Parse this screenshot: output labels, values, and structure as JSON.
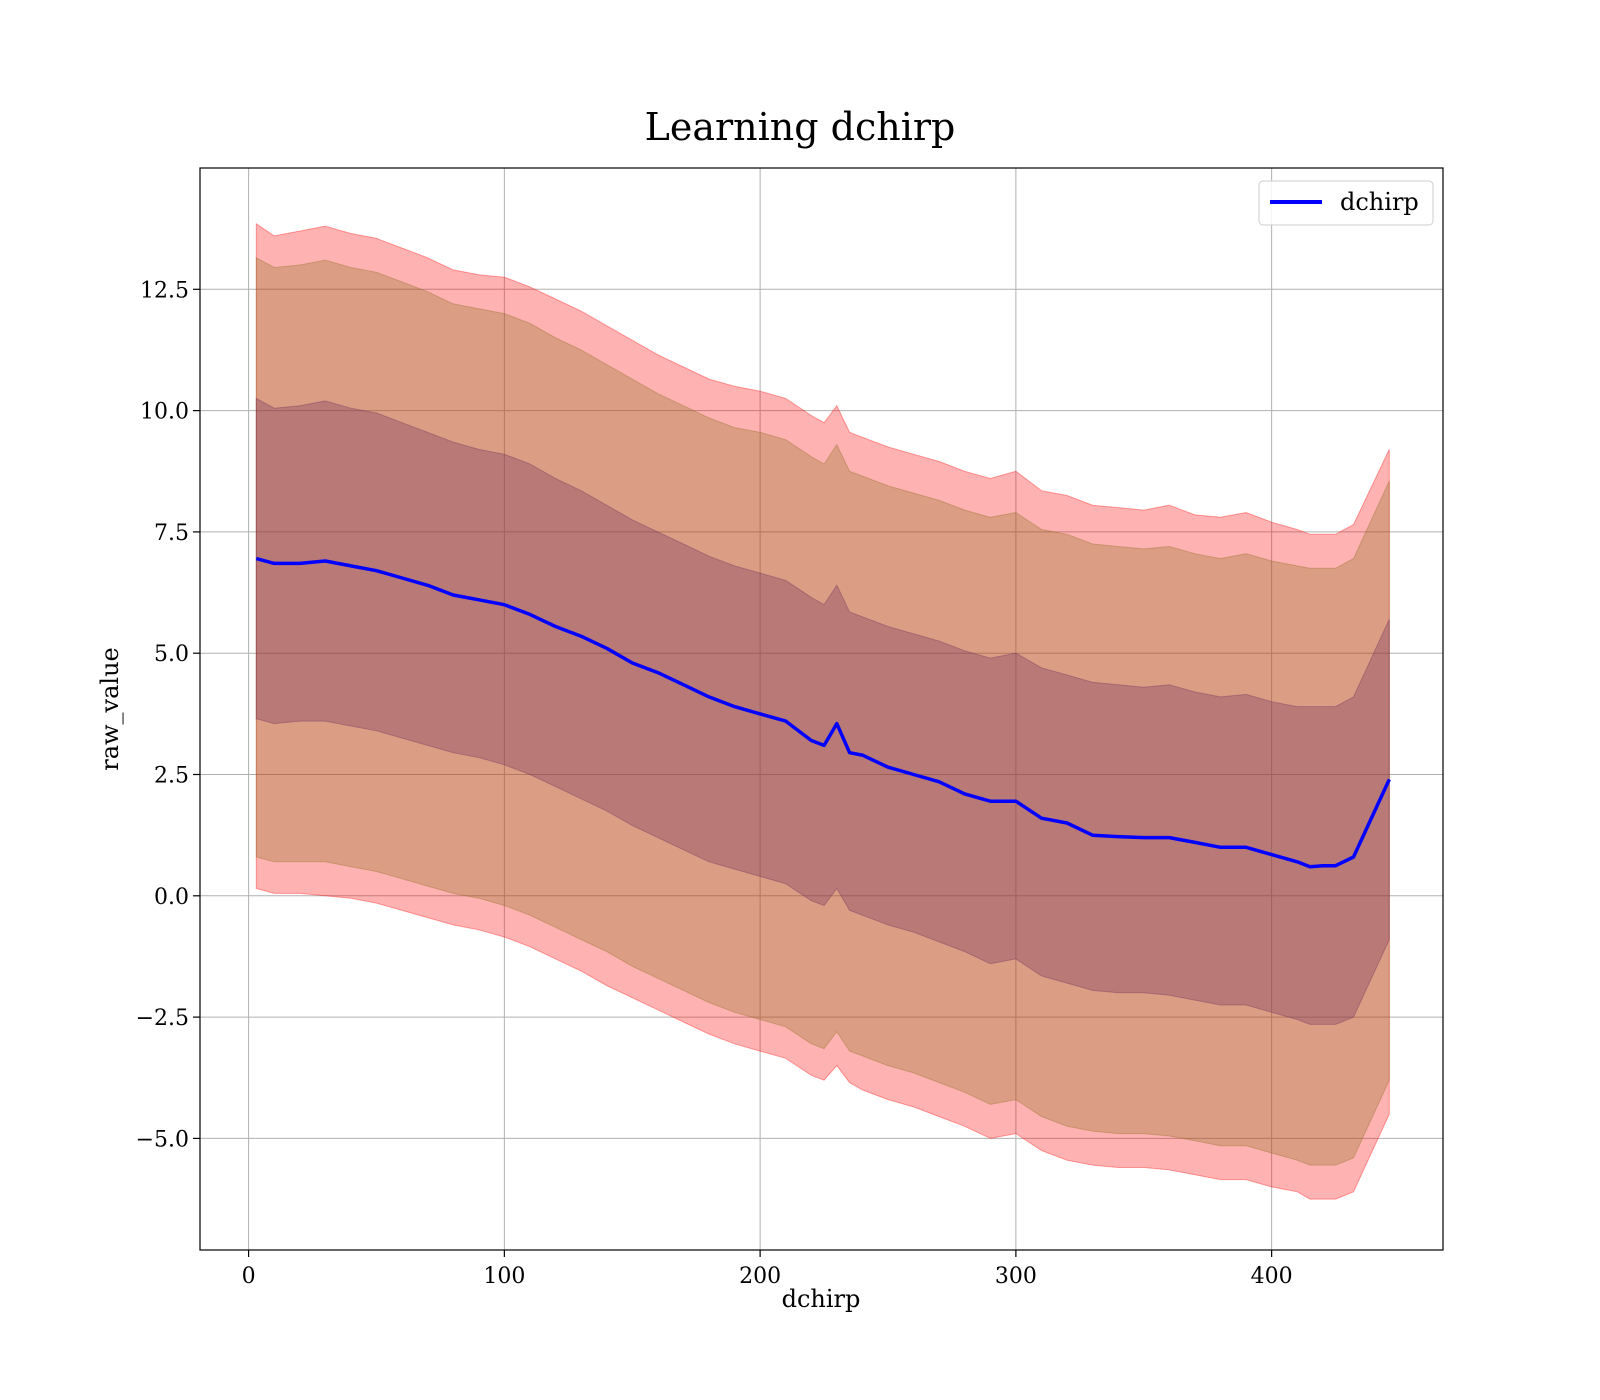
{
  "chart_data": {
    "type": "area",
    "title": "Learning dchirp",
    "xlabel": "dchirp",
    "ylabel": "raw_value",
    "xlim": [
      -19,
      467
    ],
    "ylim": [
      -7.3,
      15.0
    ],
    "x_ticks": [
      0,
      100,
      200,
      300,
      400
    ],
    "y_ticks": [
      -5.0,
      -2.5,
      0.0,
      2.5,
      5.0,
      7.5,
      10.0,
      12.5
    ],
    "x_tick_labels": [
      "0",
      "100",
      "200",
      "300",
      "400"
    ],
    "y_tick_labels": [
      "−5.0",
      "−2.5",
      "0.0",
      "2.5",
      "5.0",
      "7.5",
      "10.0",
      "12.5"
    ],
    "grid": true,
    "legend": {
      "position": "top-right",
      "entries": [
        "dchirp"
      ]
    },
    "colors": {
      "line": "#0000ff",
      "band_outer": "#ff0000",
      "band_middle": "#8c6d1f",
      "band_inner": "#6b2a58"
    },
    "series": [
      {
        "name": "dchirp",
        "x": [
          3,
          10,
          20,
          30,
          40,
          50,
          60,
          70,
          80,
          90,
          100,
          110,
          120,
          130,
          140,
          150,
          160,
          170,
          180,
          190,
          200,
          210,
          220,
          225,
          230,
          235,
          240,
          250,
          260,
          270,
          280,
          290,
          300,
          310,
          320,
          330,
          340,
          350,
          360,
          370,
          380,
          390,
          400,
          410,
          415,
          420,
          425,
          432,
          446
        ],
        "y": [
          6.95,
          6.85,
          6.85,
          6.9,
          6.8,
          6.7,
          6.55,
          6.4,
          6.2,
          6.1,
          6.0,
          5.8,
          5.55,
          5.35,
          5.1,
          4.8,
          4.6,
          4.35,
          4.1,
          3.9,
          3.75,
          3.6,
          3.2,
          3.1,
          3.55,
          2.95,
          2.9,
          2.65,
          2.5,
          2.35,
          2.1,
          1.95,
          1.95,
          1.6,
          1.5,
          1.25,
          1.22,
          1.2,
          1.2,
          1.1,
          1.0,
          1.0,
          0.85,
          0.7,
          0.6,
          0.62,
          0.62,
          0.8,
          2.4
        ]
      }
    ],
    "bands": [
      {
        "level": "outer",
        "x": [
          3,
          10,
          20,
          30,
          40,
          50,
          60,
          70,
          80,
          90,
          100,
          110,
          120,
          130,
          140,
          150,
          160,
          170,
          180,
          190,
          200,
          210,
          220,
          225,
          230,
          235,
          240,
          250,
          260,
          270,
          280,
          290,
          300,
          310,
          320,
          330,
          340,
          350,
          360,
          370,
          380,
          390,
          400,
          410,
          415,
          420,
          425,
          432,
          446
        ],
        "upper": [
          13.85,
          13.6,
          13.7,
          13.8,
          13.65,
          13.55,
          13.35,
          13.15,
          12.9,
          12.8,
          12.75,
          12.55,
          12.3,
          12.05,
          11.75,
          11.45,
          11.15,
          10.9,
          10.65,
          10.5,
          10.4,
          10.25,
          9.9,
          9.75,
          10.1,
          9.55,
          9.45,
          9.25,
          9.1,
          8.95,
          8.75,
          8.6,
          8.75,
          8.35,
          8.25,
          8.05,
          8.0,
          7.95,
          8.05,
          7.85,
          7.8,
          7.9,
          7.7,
          7.55,
          7.45,
          7.45,
          7.45,
          7.65,
          9.2
        ],
        "lower": [
          0.15,
          0.05,
          0.05,
          0.0,
          -0.05,
          -0.15,
          -0.3,
          -0.45,
          -0.6,
          -0.7,
          -0.85,
          -1.05,
          -1.3,
          -1.55,
          -1.85,
          -2.1,
          -2.35,
          -2.6,
          -2.85,
          -3.05,
          -3.2,
          -3.35,
          -3.7,
          -3.8,
          -3.5,
          -3.85,
          -4.0,
          -4.2,
          -4.35,
          -4.55,
          -4.75,
          -5.0,
          -4.9,
          -5.25,
          -5.45,
          -5.55,
          -5.6,
          -5.6,
          -5.65,
          -5.75,
          -5.85,
          -5.85,
          -6.0,
          -6.1,
          -6.25,
          -6.25,
          -6.25,
          -6.1,
          -4.5
        ]
      },
      {
        "level": "middle",
        "x": [
          3,
          10,
          20,
          30,
          40,
          50,
          60,
          70,
          80,
          90,
          100,
          110,
          120,
          130,
          140,
          150,
          160,
          170,
          180,
          190,
          200,
          210,
          220,
          225,
          230,
          235,
          240,
          250,
          260,
          270,
          280,
          290,
          300,
          310,
          320,
          330,
          340,
          350,
          360,
          370,
          380,
          390,
          400,
          410,
          415,
          420,
          425,
          432,
          446
        ],
        "upper": [
          13.15,
          12.95,
          13.0,
          13.1,
          12.95,
          12.85,
          12.65,
          12.45,
          12.2,
          12.1,
          12.0,
          11.8,
          11.5,
          11.25,
          10.95,
          10.65,
          10.35,
          10.1,
          9.85,
          9.65,
          9.55,
          9.4,
          9.05,
          8.9,
          9.3,
          8.75,
          8.65,
          8.45,
          8.3,
          8.15,
          7.95,
          7.8,
          7.9,
          7.55,
          7.45,
          7.25,
          7.2,
          7.15,
          7.2,
          7.05,
          6.95,
          7.05,
          6.9,
          6.8,
          6.75,
          6.75,
          6.75,
          6.95,
          8.55
        ],
        "lower": [
          0.8,
          0.7,
          0.7,
          0.7,
          0.6,
          0.5,
          0.35,
          0.2,
          0.05,
          -0.05,
          -0.2,
          -0.4,
          -0.65,
          -0.9,
          -1.15,
          -1.45,
          -1.7,
          -1.95,
          -2.2,
          -2.4,
          -2.55,
          -2.7,
          -3.05,
          -3.15,
          -2.8,
          -3.2,
          -3.3,
          -3.5,
          -3.65,
          -3.85,
          -4.05,
          -4.3,
          -4.2,
          -4.55,
          -4.75,
          -4.85,
          -4.9,
          -4.9,
          -4.95,
          -5.05,
          -5.15,
          -5.15,
          -5.3,
          -5.45,
          -5.55,
          -5.55,
          -5.55,
          -5.4,
          -3.8
        ]
      },
      {
        "level": "inner",
        "x": [
          3,
          10,
          20,
          30,
          40,
          50,
          60,
          70,
          80,
          90,
          100,
          110,
          120,
          130,
          140,
          150,
          160,
          170,
          180,
          190,
          200,
          210,
          220,
          225,
          230,
          235,
          240,
          250,
          260,
          270,
          280,
          290,
          300,
          310,
          320,
          330,
          340,
          350,
          360,
          370,
          380,
          390,
          400,
          410,
          415,
          420,
          425,
          432,
          446
        ],
        "upper": [
          10.25,
          10.05,
          10.1,
          10.2,
          10.05,
          9.95,
          9.75,
          9.55,
          9.35,
          9.2,
          9.1,
          8.9,
          8.6,
          8.35,
          8.05,
          7.75,
          7.5,
          7.25,
          7.0,
          6.8,
          6.65,
          6.5,
          6.15,
          6.0,
          6.4,
          5.85,
          5.75,
          5.55,
          5.4,
          5.25,
          5.05,
          4.9,
          5.0,
          4.7,
          4.55,
          4.4,
          4.35,
          4.3,
          4.35,
          4.2,
          4.1,
          4.15,
          4.0,
          3.9,
          3.9,
          3.9,
          3.9,
          4.1,
          5.7
        ],
        "lower": [
          3.65,
          3.55,
          3.6,
          3.6,
          3.5,
          3.4,
          3.25,
          3.1,
          2.95,
          2.85,
          2.7,
          2.5,
          2.25,
          2.0,
          1.75,
          1.45,
          1.2,
          0.95,
          0.7,
          0.55,
          0.4,
          0.25,
          -0.1,
          -0.2,
          0.15,
          -0.3,
          -0.4,
          -0.6,
          -0.75,
          -0.95,
          -1.15,
          -1.4,
          -1.3,
          -1.65,
          -1.8,
          -1.95,
          -2.0,
          -2.0,
          -2.05,
          -2.15,
          -2.25,
          -2.25,
          -2.4,
          -2.55,
          -2.65,
          -2.65,
          -2.65,
          -2.5,
          -0.9
        ]
      }
    ]
  }
}
